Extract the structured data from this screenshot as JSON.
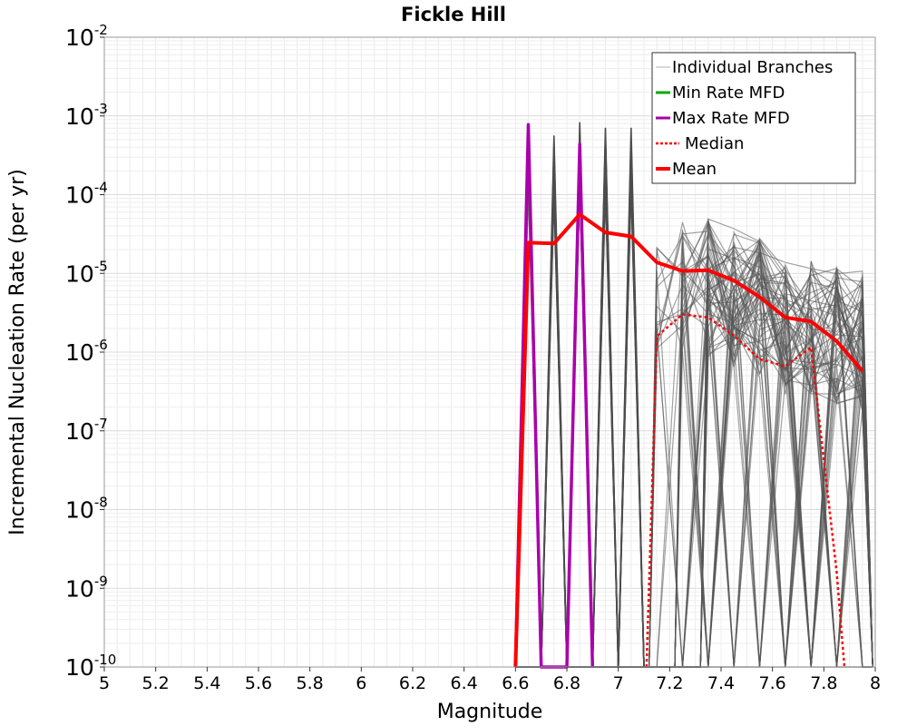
{
  "chart_data": {
    "type": "line",
    "title": "Fickle Hill",
    "xlabel": "Magnitude",
    "ylabel": "Incremental Nucleation Rate (per yr)",
    "xlim": [
      5,
      8
    ],
    "ylim_log10": [
      -10,
      -2
    ],
    "y_scale": "log",
    "x_ticks": [
      "5",
      "5.2",
      "5.4",
      "5.6",
      "5.8",
      "6",
      "6.2",
      "6.4",
      "6.6",
      "6.8",
      "7",
      "7.2",
      "7.4",
      "7.6",
      "7.8",
      "8"
    ],
    "y_ticks": [
      {
        "base": "10",
        "exp": "-2"
      },
      {
        "base": "10",
        "exp": "-3"
      },
      {
        "base": "10",
        "exp": "-4"
      },
      {
        "base": "10",
        "exp": "-5"
      },
      {
        "base": "10",
        "exp": "-6"
      },
      {
        "base": "10",
        "exp": "-7"
      },
      {
        "base": "10",
        "exp": "-8"
      },
      {
        "base": "10",
        "exp": "-9"
      },
      {
        "base": "10",
        "exp": "-10"
      }
    ],
    "grid": true,
    "legend_position": "top-right",
    "legend": [
      {
        "label": "Individual Branches",
        "color": "#b0b0b0",
        "style": "thin"
      },
      {
        "label": "Min Rate MFD",
        "color": "#00aa00",
        "style": "solid"
      },
      {
        "label": "Max Rate MFD",
        "color": "#aa00aa",
        "style": "solid"
      },
      {
        "label": "Median",
        "color": "#ff0000",
        "style": "dotted"
      },
      {
        "label": "Mean",
        "color": "#ff0000",
        "style": "thick"
      }
    ],
    "branch_color": "#555555",
    "branch_count_rendered": 90,
    "series": [
      {
        "name": "Mean",
        "color": "#ff0000",
        "x": [
          6.6,
          6.65,
          6.75,
          6.85,
          6.95,
          7.05,
          7.15,
          7.25,
          7.35,
          7.45,
          7.55,
          7.65,
          7.75,
          7.85,
          7.95
        ],
        "log10_y": [
          -10,
          -4.61,
          -4.62,
          -4.25,
          -4.48,
          -4.53,
          -4.86,
          -4.97,
          -4.96,
          -5.09,
          -5.3,
          -5.56,
          -5.61,
          -5.86,
          -6.24
        ]
      },
      {
        "name": "Median",
        "color": "#ff0000",
        "x": [
          7.11,
          7.15,
          7.25,
          7.35,
          7.45,
          7.55,
          7.65,
          7.75,
          7.85,
          7.88
        ],
        "log10_y": [
          -10,
          -5.8,
          -5.52,
          -5.56,
          -5.79,
          -6.09,
          -6.18,
          -5.94,
          -8.8,
          -10
        ]
      },
      {
        "name": "Max Rate MFD",
        "color": "#aa00aa",
        "x": [
          6.6,
          6.65,
          6.7,
          6.8,
          6.85,
          6.9
        ],
        "log10_y": [
          -10,
          -3.11,
          -10,
          -10,
          -3.36,
          -10
        ]
      },
      {
        "name": "Min Rate MFD",
        "color": "#00aa00",
        "x": [],
        "log10_y": []
      }
    ],
    "spike_peaks": [
      {
        "x": 6.75,
        "log10_y_max": -3.25
      },
      {
        "x": 6.85,
        "log10_y_max": -3.08
      },
      {
        "x": 6.95,
        "log10_y_max": -3.15
      },
      {
        "x": 7.05,
        "log10_y_max": -3.15
      }
    ]
  }
}
